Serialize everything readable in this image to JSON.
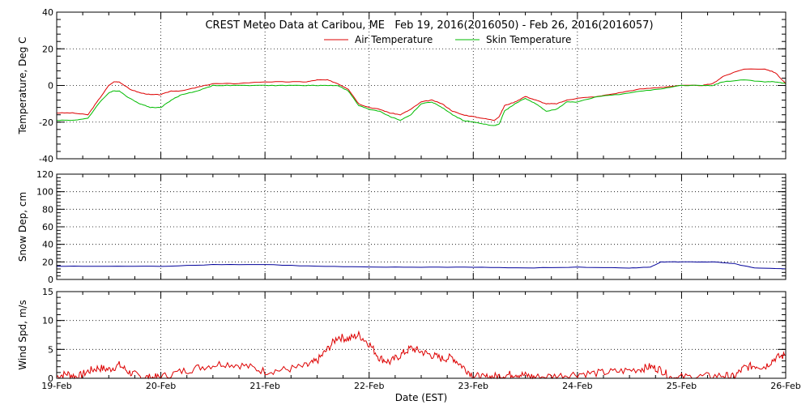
{
  "title": "CREST Meteo Data at Caribou, ME   Feb 19, 2016(2016050) - Feb 26, 2016(2016057)",
  "xlabel": "Date (EST)",
  "x_ticks": [
    "19-Feb",
    "20-Feb",
    "21-Feb",
    "22-Feb",
    "23-Feb",
    "24-Feb",
    "25-Feb",
    "26-Feb"
  ],
  "colors": {
    "air": "#dd0000",
    "skin": "#00bb00",
    "snow": "#000099",
    "wind": "#dd0000"
  },
  "chart_data": [
    {
      "type": "line",
      "ylabel": "Temperature, Deg C",
      "xlim": [
        0,
        7
      ],
      "ylim": [
        -40,
        40
      ],
      "yticks": [
        -40,
        -20,
        0,
        20,
        40
      ],
      "grid": true,
      "legend": "top-center",
      "series": [
        {
          "name": "Air Temperature",
          "color": "#dd0000",
          "x": [
            0,
            0.15,
            0.3,
            0.4,
            0.5,
            0.55,
            0.6,
            0.7,
            0.8,
            0.9,
            1.0,
            1.1,
            1.2,
            1.35,
            1.5,
            1.7,
            2.0,
            2.2,
            2.4,
            2.5,
            2.6,
            2.7,
            2.8,
            2.9,
            3.0,
            3.1,
            3.2,
            3.3,
            3.4,
            3.5,
            3.6,
            3.7,
            3.8,
            3.9,
            4.0,
            4.1,
            4.2,
            4.25,
            4.3,
            4.4,
            4.5,
            4.6,
            4.7,
            4.8,
            4.9,
            5.0,
            5.2,
            5.4,
            5.6,
            5.8,
            6.0,
            6.2,
            6.3,
            6.4,
            6.6,
            6.8,
            6.9,
            7.0
          ],
          "y": [
            -15,
            -15,
            -16,
            -8,
            0,
            2,
            2,
            -2,
            -4,
            -5,
            -5,
            -3,
            -3,
            -1,
            1,
            1,
            2,
            2,
            2,
            3,
            3,
            1,
            -2,
            -10,
            -12,
            -13,
            -15,
            -16,
            -13,
            -9,
            -8,
            -10,
            -14,
            -16,
            -17,
            -18,
            -19,
            -17,
            -11,
            -9,
            -6,
            -8,
            -10,
            -10,
            -8,
            -7,
            -6,
            -4,
            -2,
            -1,
            0,
            0,
            1,
            5,
            9,
            9,
            7,
            1
          ],
          "mode": "line"
        },
        {
          "name": "Skin Temperature",
          "color": "#00bb00",
          "x": [
            0,
            0.15,
            0.3,
            0.4,
            0.5,
            0.55,
            0.6,
            0.7,
            0.8,
            0.9,
            1.0,
            1.1,
            1.2,
            1.35,
            1.5,
            1.7,
            2.0,
            2.2,
            2.4,
            2.5,
            2.6,
            2.7,
            2.8,
            2.9,
            3.0,
            3.1,
            3.2,
            3.3,
            3.4,
            3.5,
            3.6,
            3.7,
            3.8,
            3.9,
            4.0,
            4.1,
            4.2,
            4.25,
            4.3,
            4.4,
            4.5,
            4.6,
            4.7,
            4.8,
            4.9,
            5.0,
            5.2,
            5.4,
            5.6,
            5.8,
            6.0,
            6.2,
            6.3,
            6.4,
            6.6,
            6.8,
            6.9,
            7.0
          ],
          "y": [
            -19,
            -19,
            -18,
            -10,
            -4,
            -3,
            -3,
            -7,
            -10,
            -12,
            -12,
            -8,
            -5,
            -3,
            0,
            0,
            0,
            0,
            0,
            0,
            0,
            0,
            -3,
            -11,
            -13,
            -14,
            -17,
            -19,
            -16,
            -10,
            -9,
            -12,
            -16,
            -19,
            -20,
            -21,
            -22,
            -21,
            -14,
            -10,
            -7,
            -10,
            -14,
            -13,
            -9,
            -9,
            -6,
            -5,
            -3,
            -2,
            0,
            0,
            0,
            2,
            3,
            2,
            2,
            1
          ],
          "mode": "line"
        }
      ]
    },
    {
      "type": "line",
      "ylabel": "Snow Dep, cm",
      "xlim": [
        0,
        7
      ],
      "ylim": [
        0,
        120
      ],
      "yticks": [
        0,
        20,
        40,
        60,
        80,
        100,
        120
      ],
      "grid": true,
      "series": [
        {
          "color": "#000099",
          "x": [
            0,
            0.5,
            1.0,
            1.5,
            2.0,
            2.5,
            3.0,
            3.5,
            4.0,
            4.5,
            5.0,
            5.5,
            5.7,
            5.8,
            6.0,
            6.3,
            6.5,
            6.7,
            7.0
          ],
          "y": [
            15,
            15,
            15,
            17,
            17,
            15,
            14,
            14,
            14,
            13,
            14,
            13,
            14,
            20,
            20,
            20,
            18,
            13,
            12
          ],
          "mode": "line"
        }
      ]
    },
    {
      "type": "line",
      "ylabel": "Wind Spd, m/s",
      "xlim": [
        0,
        7
      ],
      "ylim": [
        0,
        15
      ],
      "yticks": [
        0,
        5,
        10,
        15
      ],
      "grid": true,
      "series": [
        {
          "color": "#dd0000",
          "x": [
            0,
            0.1,
            0.2,
            0.3,
            0.4,
            0.5,
            0.6,
            0.7,
            0.8,
            0.9,
            1.0,
            1.2,
            1.4,
            1.6,
            1.8,
            2.0,
            2.2,
            2.4,
            2.5,
            2.6,
            2.7,
            2.8,
            2.9,
            3.0,
            3.1,
            3.2,
            3.3,
            3.4,
            3.5,
            3.6,
            3.7,
            3.8,
            3.9,
            4.0,
            4.1,
            4.2,
            4.3,
            4.4,
            4.5,
            4.6,
            4.8,
            5.0,
            5.2,
            5.4,
            5.6,
            5.7,
            5.8,
            5.9,
            6.0,
            6.2,
            6.4,
            6.5,
            6.6,
            6.7,
            6.8,
            6.9,
            7.0
          ],
          "y": [
            0.3,
            0.8,
            0.2,
            1.2,
            1.8,
            1.5,
            2.3,
            1.0,
            0.3,
            0.1,
            0.2,
            1.2,
            2.0,
            2.6,
            2.2,
            1.2,
            1.5,
            2.1,
            3.0,
            5.0,
            7.2,
            6.8,
            7.5,
            6.0,
            3.5,
            2.8,
            4.0,
            5.2,
            4.6,
            4.0,
            3.4,
            3.6,
            2.0,
            0.5,
            0.1,
            0.3,
            0.5,
            0.8,
            0.5,
            0.2,
            0.4,
            0.8,
            0.9,
            1.2,
            1.6,
            2.0,
            1.5,
            0.1,
            0.2,
            0.3,
            0.5,
            0.2,
            1.8,
            2.2,
            2.0,
            3.5,
            4.0
          ],
          "mode": "jagged"
        }
      ]
    }
  ]
}
